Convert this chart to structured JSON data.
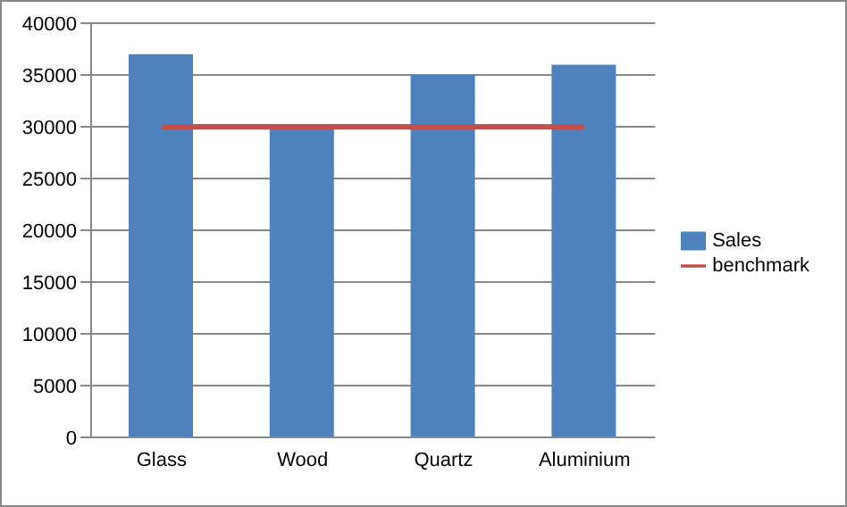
{
  "chart_data": {
    "type": "bar",
    "categories": [
      "Glass",
      "Wood",
      "Quartz",
      "Aluminium"
    ],
    "series": [
      {
        "name": "Sales",
        "color": "#4f81bd",
        "values": [
          37000,
          30000,
          35000,
          36000
        ]
      },
      {
        "name": "benchmark",
        "type": "line",
        "color": "#c0504d",
        "values": [
          30000,
          30000,
          30000,
          30000
        ]
      }
    ],
    "ylim": [
      0,
      40000
    ],
    "yticks": [
      0,
      5000,
      10000,
      15000,
      20000,
      25000,
      30000,
      35000,
      40000
    ],
    "grid": "y",
    "legend": "right",
    "marker": "none"
  }
}
